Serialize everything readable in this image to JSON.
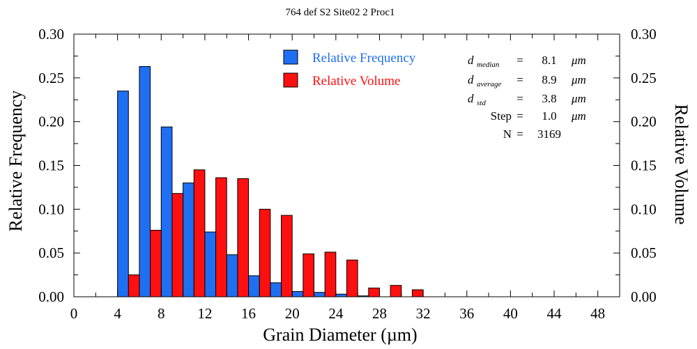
{
  "chart_data": {
    "type": "bar",
    "title": "764 def S2 Site02 2 Proc1",
    "xlabel": "Grain Diameter (µm)",
    "ylabel": "Relative Frequency",
    "y2label": "Relative Volume",
    "xlim": [
      0,
      50
    ],
    "ylim": [
      0,
      0.3
    ],
    "xticks": [
      "0",
      "4",
      "8",
      "12",
      "16",
      "20",
      "24",
      "28",
      "32",
      "36",
      "40",
      "44",
      "48"
    ],
    "yticks": [
      "0.00",
      "0.05",
      "0.10",
      "0.15",
      "0.20",
      "0.25",
      "0.30"
    ],
    "bin_width": 2,
    "bin_centers": [
      5,
      7,
      9,
      11,
      13,
      15,
      17,
      19,
      21,
      23,
      25,
      27,
      29,
      31
    ],
    "series": [
      {
        "name": "Relative Frequency",
        "color": "#1f6ff2",
        "values": [
          0.235,
          0.263,
          0.194,
          0.13,
          0.074,
          0.048,
          0.024,
          0.016,
          0.006,
          0.005,
          0.003,
          0.001,
          0.0,
          0.0
        ]
      },
      {
        "name": "Relative Volume",
        "color": "#ff1010",
        "values": [
          0.025,
          0.076,
          0.118,
          0.145,
          0.136,
          0.135,
          0.1,
          0.093,
          0.049,
          0.051,
          0.042,
          0.01,
          0.013,
          0.008
        ]
      }
    ],
    "legend_position": "top-center",
    "stats": [
      {
        "sym": "d",
        "sub": "median",
        "eq": "=",
        "value": "8.1",
        "unit": "μm"
      },
      {
        "sym": "d",
        "sub": "average",
        "eq": "=",
        "value": "8.9",
        "unit": "μm"
      },
      {
        "sym": "d",
        "sub": "std",
        "eq": "=",
        "value": "3.8",
        "unit": "μm"
      },
      {
        "sym": "Step",
        "sub": "",
        "eq": "=",
        "value": "1.0",
        "unit": "μm"
      },
      {
        "sym": "N",
        "sub": "",
        "eq": "=",
        "value": "3169",
        "unit": ""
      }
    ]
  }
}
